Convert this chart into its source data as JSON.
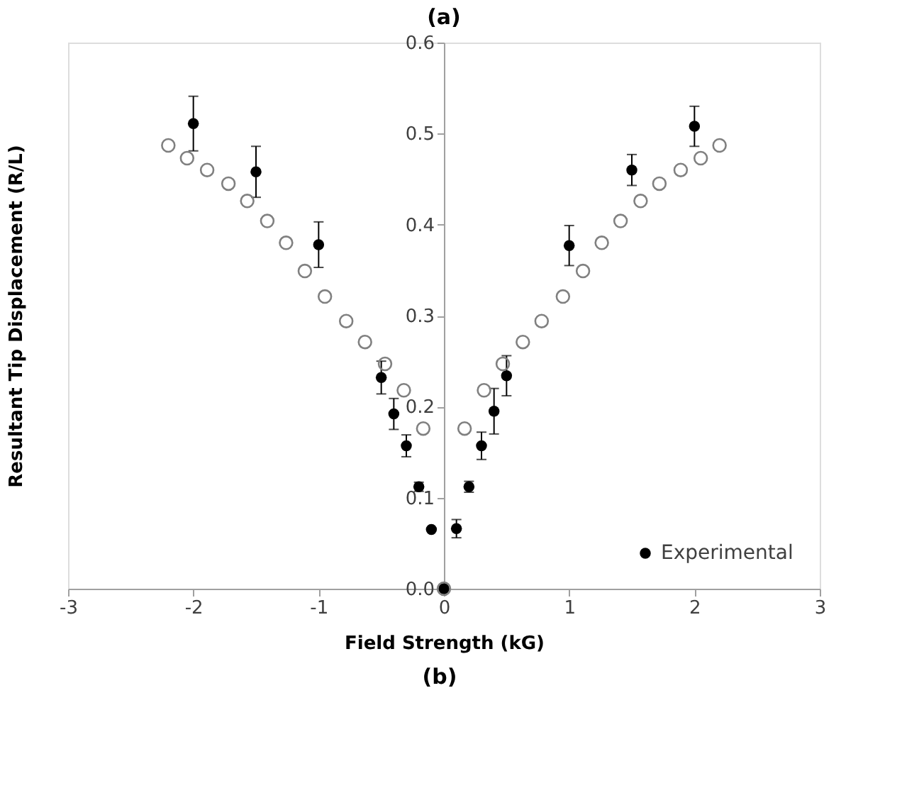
{
  "chart_data": {
    "type": "scatter",
    "title": "(a)",
    "xlabel": "Field Strength (kG)",
    "ylabel": "Resultant Tip Displacement (R/L)",
    "annotations": [
      "(b)"
    ],
    "xlim": [
      -3,
      3
    ],
    "xticks": [
      -3,
      -2,
      -1,
      0,
      1,
      2,
      3
    ],
    "ylim": [
      0,
      0.6
    ],
    "yticks": [
      {
        "value": 0,
        "label": "0.0"
      },
      0.1,
      0.2,
      0.3,
      0.4,
      0.5,
      0.6
    ],
    "grid": false,
    "legend": "bottom right",
    "marker": "circle",
    "series": [
      {
        "name": "Experimental",
        "color": "#000000",
        "x": [
          -2,
          -1.5,
          -1,
          -0.5,
          -0.4,
          -0.3,
          -0.2,
          -0.1,
          0,
          0.1,
          0.2,
          0.3,
          0.4,
          0.5,
          1,
          1.5,
          2
        ],
        "values": [
          0.511,
          0.458,
          0.378,
          0.232,
          0.192,
          0.157,
          0.112,
          0.065,
          0,
          0.066,
          0.112,
          0.157,
          0.195,
          0.234,
          0.377,
          0.46,
          0.508
        ],
        "errors": [
          0.03,
          0.028,
          0.025,
          0.018,
          0.017,
          0.012,
          0.005,
          null,
          null,
          0.01,
          0.006,
          0.015,
          0.025,
          0.022,
          0.022,
          0.017,
          0.022
        ]
      },
      {
        "color": "#808080",
        "x": [
          -2.2,
          -2.05,
          -1.89,
          -1.72,
          -1.57,
          -1.41,
          -1.26,
          -1.11,
          -0.95,
          -0.78,
          -0.63,
          -0.47,
          -0.32,
          -0.165,
          0,
          0.165,
          0.32,
          0.47,
          0.63,
          0.78,
          0.95,
          1.11,
          1.26,
          1.41,
          1.57,
          1.72,
          1.89,
          2.05,
          2.2
        ],
        "values": [
          0.487,
          0.473,
          0.46,
          0.445,
          0.426,
          0.404,
          0.38,
          0.349,
          0.321,
          0.294,
          0.271,
          0.247,
          0.218,
          0.176,
          0,
          0.176,
          0.218,
          0.247,
          0.271,
          0.294,
          0.321,
          0.349,
          0.38,
          0.404,
          0.426,
          0.445,
          0.46,
          0.473,
          0.487
        ]
      }
    ]
  }
}
